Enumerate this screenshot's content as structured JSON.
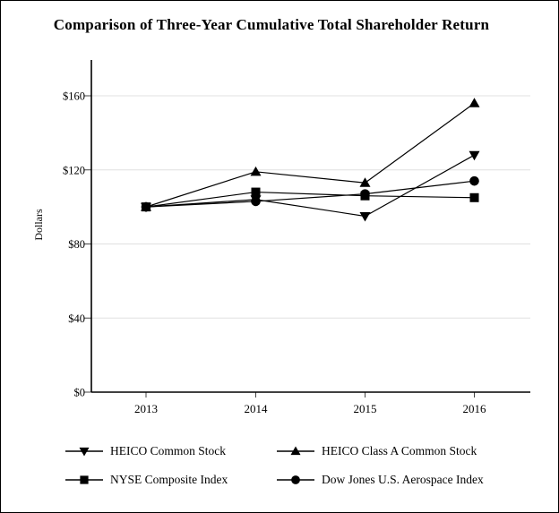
{
  "chart_data": {
    "type": "line",
    "title": "Comparison of Three-Year Cumulative Total Shareholder Return",
    "xlabel": "",
    "ylabel": "Dollars",
    "x": [
      2013,
      2014,
      2015,
      2016
    ],
    "x_tick_labels": [
      "2013",
      "2014",
      "2015",
      "2016"
    ],
    "y_ticks": [
      0,
      40,
      80,
      120,
      160
    ],
    "y_tick_labels": [
      "$0",
      "$40",
      "$80",
      "$120",
      "$160"
    ],
    "ylim": [
      0,
      180
    ],
    "grid": "horizontal-gridlines-at-y-ticks",
    "legend_position": "bottom",
    "series": [
      {
        "name": "HEICO Common Stock",
        "marker": "triangle-down",
        "values": [
          100,
          104,
          95,
          128
        ]
      },
      {
        "name": "HEICO Class A Common Stock",
        "marker": "triangle-up",
        "values": [
          100,
          119,
          113,
          156
        ]
      },
      {
        "name": "Dow Jones U.S. Aerospace Index",
        "marker": "circle",
        "values": [
          100,
          103,
          107,
          114
        ]
      },
      {
        "name": "NYSE Composite Index",
        "marker": "square",
        "values": [
          100,
          108,
          106,
          105
        ]
      }
    ],
    "colors": {
      "line": "#000000",
      "marker": "#000000",
      "gridline": "#e0e0e0",
      "tick": "#444444",
      "axis": "#000000",
      "background": "#ffffff",
      "border": "#000000"
    }
  },
  "legend": {
    "items": [
      {
        "label": "HEICO Common Stock",
        "marker": "triangle-down"
      },
      {
        "label": "HEICO Class A Common Stock",
        "marker": "triangle-up"
      },
      {
        "label": "NYSE Composite Index",
        "marker": "square"
      },
      {
        "label": "Dow Jones U.S. Aerospace Index",
        "marker": "circle"
      }
    ]
  }
}
